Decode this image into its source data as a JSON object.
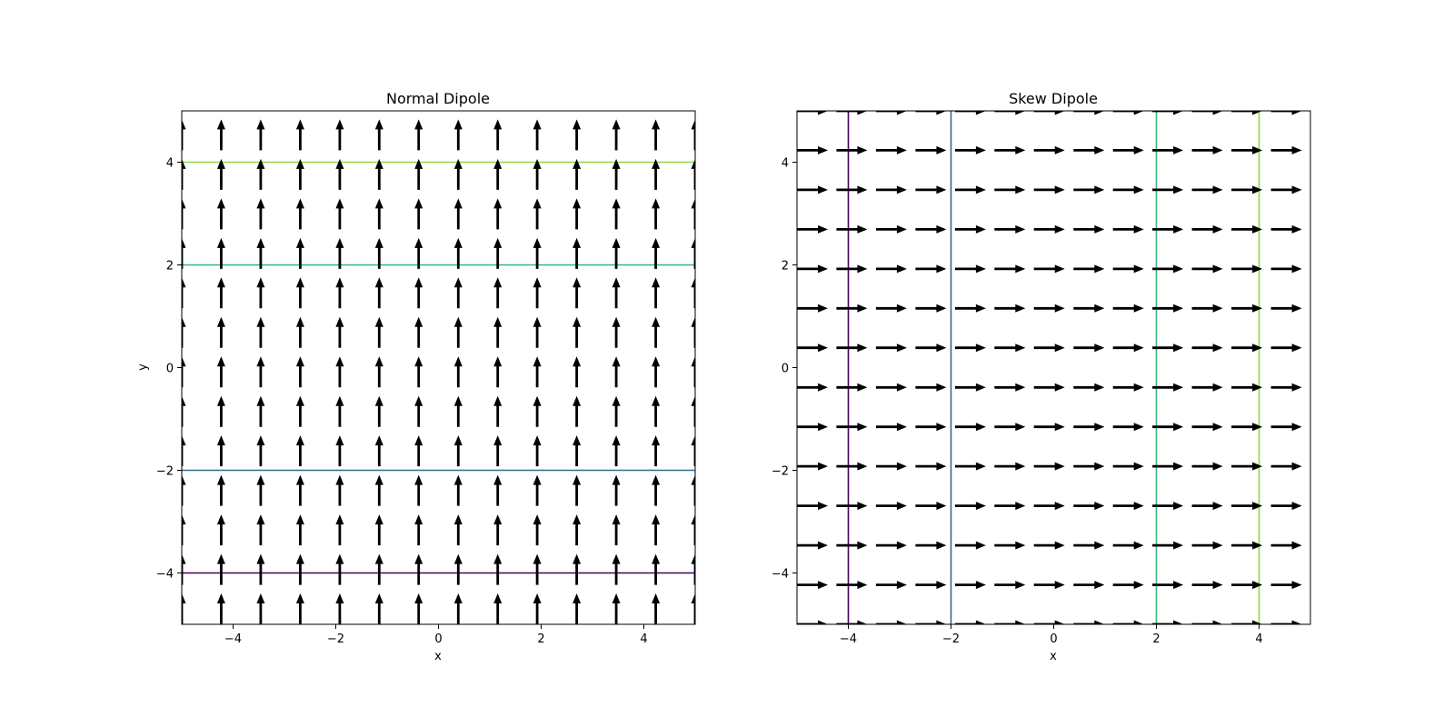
{
  "chart_data": [
    {
      "type": "quiver",
      "title": "Normal Dipole",
      "xlabel": "x",
      "ylabel": "y",
      "xlim": [
        -5,
        5
      ],
      "ylim": [
        -5,
        5
      ],
      "xticks": [
        -4,
        -2,
        0,
        2,
        4
      ],
      "yticks": [
        -4,
        -2,
        0,
        2,
        4
      ],
      "xtick_labels": [
        "−4",
        "−2",
        "0",
        "2",
        "4"
      ],
      "ytick_labels": [
        "−4",
        "−2",
        "0",
        "2",
        "4"
      ],
      "grid": false,
      "vector_field": {
        "x": [
          -5.0,
          -4.231,
          -3.462,
          -2.692,
          -1.923,
          -1.154,
          -0.385,
          0.385,
          1.154,
          1.923,
          2.692,
          3.462,
          4.231,
          5.0
        ],
        "y": [
          -5.0,
          -4.231,
          -3.462,
          -2.692,
          -1.923,
          -1.154,
          -0.385,
          0.385,
          1.154,
          1.923,
          2.692,
          3.462,
          4.231,
          5.0
        ],
        "direction": [
          0,
          1
        ]
      },
      "contours": [
        {
          "level": -4,
          "color": "#440154"
        },
        {
          "level": -2,
          "color": "#31688e"
        },
        {
          "level": 2,
          "color": "#35b779"
        },
        {
          "level": 4,
          "color": "#90d743"
        }
      ]
    },
    {
      "type": "quiver",
      "title": "Skew Dipole",
      "xlabel": "x",
      "ylabel": "",
      "xlim": [
        -5,
        5
      ],
      "ylim": [
        -5,
        5
      ],
      "xticks": [
        -4,
        -2,
        0,
        2,
        4
      ],
      "yticks": [
        -4,
        -2,
        0,
        2,
        4
      ],
      "xtick_labels": [
        "−4",
        "−2",
        "0",
        "2",
        "4"
      ],
      "ytick_labels": [
        "−4",
        "−2",
        "0",
        "2",
        "4"
      ],
      "grid": false,
      "vector_field": {
        "x": [
          -5.0,
          -4.231,
          -3.462,
          -2.692,
          -1.923,
          -1.154,
          -0.385,
          0.385,
          1.154,
          1.923,
          2.692,
          3.462,
          4.231,
          5.0
        ],
        "y": [
          -5.0,
          -4.231,
          -3.462,
          -2.692,
          -1.923,
          -1.154,
          -0.385,
          0.385,
          1.154,
          1.923,
          2.692,
          3.462,
          4.231,
          5.0
        ],
        "direction": [
          1,
          0
        ]
      },
      "contours": [
        {
          "level": -4,
          "color": "#440154"
        },
        {
          "level": -2,
          "color": "#31688e"
        },
        {
          "level": 2,
          "color": "#35b779"
        },
        {
          "level": 4,
          "color": "#90d743"
        }
      ]
    }
  ]
}
